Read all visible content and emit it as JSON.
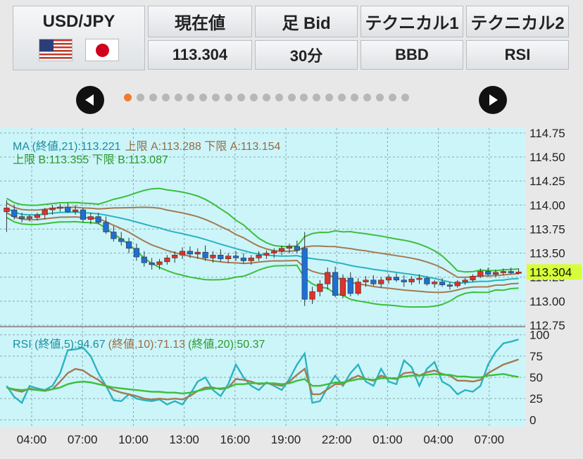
{
  "header": {
    "pair": "USD/JPY",
    "flags": [
      "us-flag-icon",
      "jp-flag-icon"
    ],
    "columns": [
      {
        "label": "現在値",
        "value": "113.304"
      },
      {
        "label": "足 Bid",
        "value": "30分"
      },
      {
        "label": "テクニカル1",
        "value": "BBD"
      },
      {
        "label": "テクニカル2",
        "value": "RSI"
      }
    ]
  },
  "pager": {
    "count": 23,
    "active_index": 0,
    "prev_icon": "arrow-left-icon",
    "next_icon": "arrow-right-icon"
  },
  "colors": {
    "chart_bg": "#ccf5fa",
    "up": "#e0312b",
    "down": "#1f6fd1",
    "ma": "#2bb3c0",
    "band_a": "#a57a4f",
    "band_b": "#3bbf3b",
    "price_tag": "#d6ff3a"
  },
  "chart_data": [
    {
      "type": "candlestick",
      "legend": {
        "line1_ma": "MA (終値,21):113.221",
        "line1_a": "上限 A:113.288 下限 A:113.154",
        "line2_b": "上限 B:113.355 下限 B:113.087"
      },
      "current_price": "113.304",
      "y_ticks": [
        "114.75",
        "114.50",
        "114.25",
        "114.00",
        "113.75",
        "113.50",
        "113.25",
        "113.00",
        "112.75"
      ],
      "ylim": [
        112.75,
        114.8
      ],
      "grid": true,
      "candles": [
        {
          "o": 113.93,
          "h": 114.05,
          "l": 113.72,
          "c": 113.97
        },
        {
          "o": 113.95,
          "h": 114.0,
          "l": 113.85,
          "c": 113.88
        },
        {
          "o": 113.88,
          "h": 113.92,
          "l": 113.82,
          "c": 113.86
        },
        {
          "o": 113.86,
          "h": 113.9,
          "l": 113.83,
          "c": 113.88
        },
        {
          "o": 113.87,
          "h": 113.92,
          "l": 113.84,
          "c": 113.9
        },
        {
          "o": 113.9,
          "h": 113.97,
          "l": 113.85,
          "c": 113.95
        },
        {
          "o": 113.95,
          "h": 114.0,
          "l": 113.9,
          "c": 113.97
        },
        {
          "o": 113.97,
          "h": 114.01,
          "l": 113.93,
          "c": 113.98
        },
        {
          "o": 113.98,
          "h": 114.02,
          "l": 113.92,
          "c": 113.93
        },
        {
          "o": 113.93,
          "h": 114.0,
          "l": 113.9,
          "c": 113.95
        },
        {
          "o": 113.95,
          "h": 113.97,
          "l": 113.82,
          "c": 113.85
        },
        {
          "o": 113.85,
          "h": 113.92,
          "l": 113.8,
          "c": 113.88
        },
        {
          "o": 113.88,
          "h": 113.92,
          "l": 113.8,
          "c": 113.82
        },
        {
          "o": 113.82,
          "h": 113.88,
          "l": 113.7,
          "c": 113.72
        },
        {
          "o": 113.72,
          "h": 113.78,
          "l": 113.62,
          "c": 113.65
        },
        {
          "o": 113.65,
          "h": 113.72,
          "l": 113.58,
          "c": 113.62
        },
        {
          "o": 113.62,
          "h": 113.66,
          "l": 113.5,
          "c": 113.55
        },
        {
          "o": 113.55,
          "h": 113.6,
          "l": 113.42,
          "c": 113.46
        },
        {
          "o": 113.46,
          "h": 113.52,
          "l": 113.36,
          "c": 113.4
        },
        {
          "o": 113.4,
          "h": 113.45,
          "l": 113.33,
          "c": 113.38
        },
        {
          "o": 113.38,
          "h": 113.44,
          "l": 113.33,
          "c": 113.41
        },
        {
          "o": 113.41,
          "h": 113.48,
          "l": 113.38,
          "c": 113.45
        },
        {
          "o": 113.45,
          "h": 113.52,
          "l": 113.4,
          "c": 113.48
        },
        {
          "o": 113.48,
          "h": 113.56,
          "l": 113.44,
          "c": 113.52
        },
        {
          "o": 113.52,
          "h": 113.57,
          "l": 113.45,
          "c": 113.49
        },
        {
          "o": 113.49,
          "h": 113.55,
          "l": 113.44,
          "c": 113.51
        },
        {
          "o": 113.51,
          "h": 113.58,
          "l": 113.42,
          "c": 113.45
        },
        {
          "o": 113.45,
          "h": 113.52,
          "l": 113.4,
          "c": 113.48
        },
        {
          "o": 113.48,
          "h": 113.54,
          "l": 113.41,
          "c": 113.44
        },
        {
          "o": 113.44,
          "h": 113.5,
          "l": 113.4,
          "c": 113.47
        },
        {
          "o": 113.47,
          "h": 113.52,
          "l": 113.42,
          "c": 113.45
        },
        {
          "o": 113.45,
          "h": 113.5,
          "l": 113.39,
          "c": 113.42
        },
        {
          "o": 113.42,
          "h": 113.48,
          "l": 113.38,
          "c": 113.45
        },
        {
          "o": 113.45,
          "h": 113.52,
          "l": 113.42,
          "c": 113.48
        },
        {
          "o": 113.48,
          "h": 113.53,
          "l": 113.44,
          "c": 113.5
        },
        {
          "o": 113.5,
          "h": 113.55,
          "l": 113.45,
          "c": 113.52
        },
        {
          "o": 113.52,
          "h": 113.58,
          "l": 113.48,
          "c": 113.55
        },
        {
          "o": 113.55,
          "h": 113.6,
          "l": 113.5,
          "c": 113.57
        },
        {
          "o": 113.57,
          "h": 113.63,
          "l": 113.5,
          "c": 113.53
        },
        {
          "o": 113.55,
          "h": 113.72,
          "l": 112.95,
          "c": 113.02
        },
        {
          "o": 113.02,
          "h": 113.15,
          "l": 112.97,
          "c": 113.1
        },
        {
          "o": 113.1,
          "h": 113.22,
          "l": 113.05,
          "c": 113.18
        },
        {
          "o": 113.18,
          "h": 113.35,
          "l": 113.12,
          "c": 113.3
        },
        {
          "o": 113.3,
          "h": 113.36,
          "l": 113.04,
          "c": 113.06
        },
        {
          "o": 113.06,
          "h": 113.28,
          "l": 113.03,
          "c": 113.24
        },
        {
          "o": 113.24,
          "h": 113.3,
          "l": 113.05,
          "c": 113.08
        },
        {
          "o": 113.08,
          "h": 113.24,
          "l": 113.06,
          "c": 113.2
        },
        {
          "o": 113.2,
          "h": 113.26,
          "l": 113.15,
          "c": 113.22
        },
        {
          "o": 113.22,
          "h": 113.27,
          "l": 113.16,
          "c": 113.18
        },
        {
          "o": 113.18,
          "h": 113.25,
          "l": 113.14,
          "c": 113.22
        },
        {
          "o": 113.22,
          "h": 113.28,
          "l": 113.18,
          "c": 113.25
        },
        {
          "o": 113.25,
          "h": 113.29,
          "l": 113.2,
          "c": 113.22
        },
        {
          "o": 113.22,
          "h": 113.27,
          "l": 113.15,
          "c": 113.2
        },
        {
          "o": 113.2,
          "h": 113.26,
          "l": 113.17,
          "c": 113.23
        },
        {
          "o": 113.23,
          "h": 113.28,
          "l": 113.18,
          "c": 113.24
        },
        {
          "o": 113.24,
          "h": 113.26,
          "l": 113.16,
          "c": 113.18
        },
        {
          "o": 113.18,
          "h": 113.22,
          "l": 113.14,
          "c": 113.2
        },
        {
          "o": 113.2,
          "h": 113.24,
          "l": 113.15,
          "c": 113.17
        },
        {
          "o": 113.17,
          "h": 113.2,
          "l": 113.12,
          "c": 113.16
        },
        {
          "o": 113.16,
          "h": 113.22,
          "l": 113.14,
          "c": 113.2
        },
        {
          "o": 113.2,
          "h": 113.24,
          "l": 113.17,
          "c": 113.22
        },
        {
          "o": 113.22,
          "h": 113.28,
          "l": 113.2,
          "c": 113.26
        },
        {
          "o": 113.26,
          "h": 113.34,
          "l": 113.24,
          "c": 113.31
        },
        {
          "o": 113.31,
          "h": 113.35,
          "l": 113.26,
          "c": 113.28
        },
        {
          "o": 113.28,
          "h": 113.33,
          "l": 113.25,
          "c": 113.3
        },
        {
          "o": 113.3,
          "h": 113.34,
          "l": 113.27,
          "c": 113.31
        },
        {
          "o": 113.31,
          "h": 113.35,
          "l": 113.28,
          "c": 113.3
        },
        {
          "o": 113.3,
          "h": 113.34,
          "l": 113.28,
          "c": 113.304
        }
      ]
    },
    {
      "type": "line",
      "legend": {
        "rsi5": "RSI (終値,5):94.67",
        "rsi10": "(終値,10):71.13",
        "rsi20": "(終値,20):50.37"
      },
      "y_ticks": [
        "100",
        "75",
        "50",
        "25",
        "0"
      ],
      "ylim": [
        -8,
        108
      ],
      "series": [
        {
          "name": "RSI (終値,5)",
          "color": "#2bb3c0",
          "values": [
            40,
            27,
            20,
            40,
            37,
            35,
            40,
            55,
            82,
            83,
            85,
            75,
            55,
            40,
            23,
            22,
            30,
            25,
            23,
            22,
            24,
            18,
            22,
            18,
            30,
            45,
            50,
            35,
            28,
            42,
            65,
            50,
            40,
            35,
            44,
            40,
            35,
            48,
            65,
            78,
            20,
            22,
            38,
            52,
            40,
            55,
            65,
            45,
            40,
            60,
            45,
            42,
            70,
            62,
            40,
            60,
            68,
            45,
            40,
            30,
            35,
            33,
            40,
            65,
            80,
            90,
            92,
            94.67
          ]
        },
        {
          "name": "(終値,10)",
          "color": "#a57a4f",
          "values": [
            38,
            35,
            33,
            37,
            35,
            34,
            36,
            45,
            55,
            60,
            58,
            52,
            47,
            40,
            35,
            32,
            30,
            28,
            25,
            24,
            25,
            24,
            25,
            24,
            28,
            34,
            38,
            38,
            36,
            38,
            48,
            47,
            45,
            42,
            43,
            42,
            40,
            45,
            53,
            60,
            30,
            30,
            36,
            42,
            42,
            48,
            52,
            48,
            46,
            52,
            49,
            48,
            55,
            56,
            52,
            56,
            58,
            54,
            52,
            46,
            46,
            45,
            47,
            55,
            60,
            65,
            68,
            71.13
          ]
        },
        {
          "name": "(終値,20)",
          "color": "#3bbf3b",
          "values": [
            38,
            36,
            35,
            36,
            35,
            35,
            36,
            38,
            42,
            44,
            45,
            44,
            42,
            40,
            38,
            37,
            36,
            35,
            34,
            33,
            33,
            32,
            32,
            31,
            32,
            34,
            36,
            37,
            37,
            38,
            42,
            42,
            43,
            43,
            43,
            43,
            42,
            43,
            46,
            48,
            40,
            40,
            42,
            44,
            44,
            46,
            48,
            48,
            47,
            49,
            49,
            49,
            51,
            52,
            52,
            53,
            54,
            53,
            53,
            51,
            51,
            50,
            50,
            52,
            53,
            54,
            52,
            50.37
          ]
        }
      ]
    }
  ],
  "x_ticks": [
    "04:00",
    "07:00",
    "10:00",
    "13:00",
    "16:00",
    "19:00",
    "22:00",
    "01:00",
    "04:00",
    "07:00"
  ]
}
